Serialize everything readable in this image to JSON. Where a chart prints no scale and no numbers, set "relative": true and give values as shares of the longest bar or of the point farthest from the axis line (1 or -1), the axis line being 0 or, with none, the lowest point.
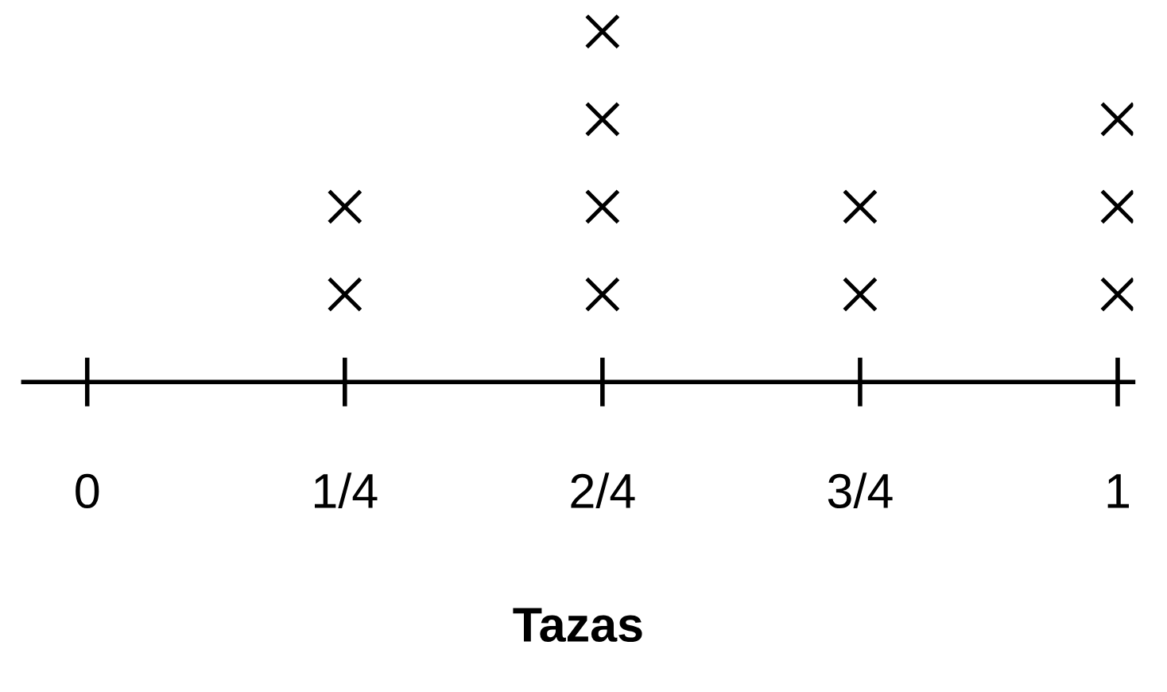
{
  "chart_data": {
    "type": "scatter",
    "xlabel": "Tazas",
    "x": [
      0.25,
      0.25,
      0.5,
      0.5,
      0.5,
      0.5,
      0.75,
      0.75,
      1,
      1,
      1
    ],
    "values": [
      0.25,
      0.5,
      0.25,
      0.5,
      0.75,
      1,
      0.25,
      0.5,
      0.25,
      0.5,
      0.75
    ],
    "relative": true,
    "color": "#000000",
    "marker": "cross",
    "xlim": [
      -0.062,
      1.015
    ],
    "xticks": [
      0,
      {
        "value": 0.25,
        "label": "1/4"
      },
      {
        "value": 0.5,
        "label": "2/4"
      },
      {
        "value": 0.75,
        "label": "3/4"
      },
      1
    ],
    "tick_labels": "x",
    "grid": false,
    "legend": false
  }
}
